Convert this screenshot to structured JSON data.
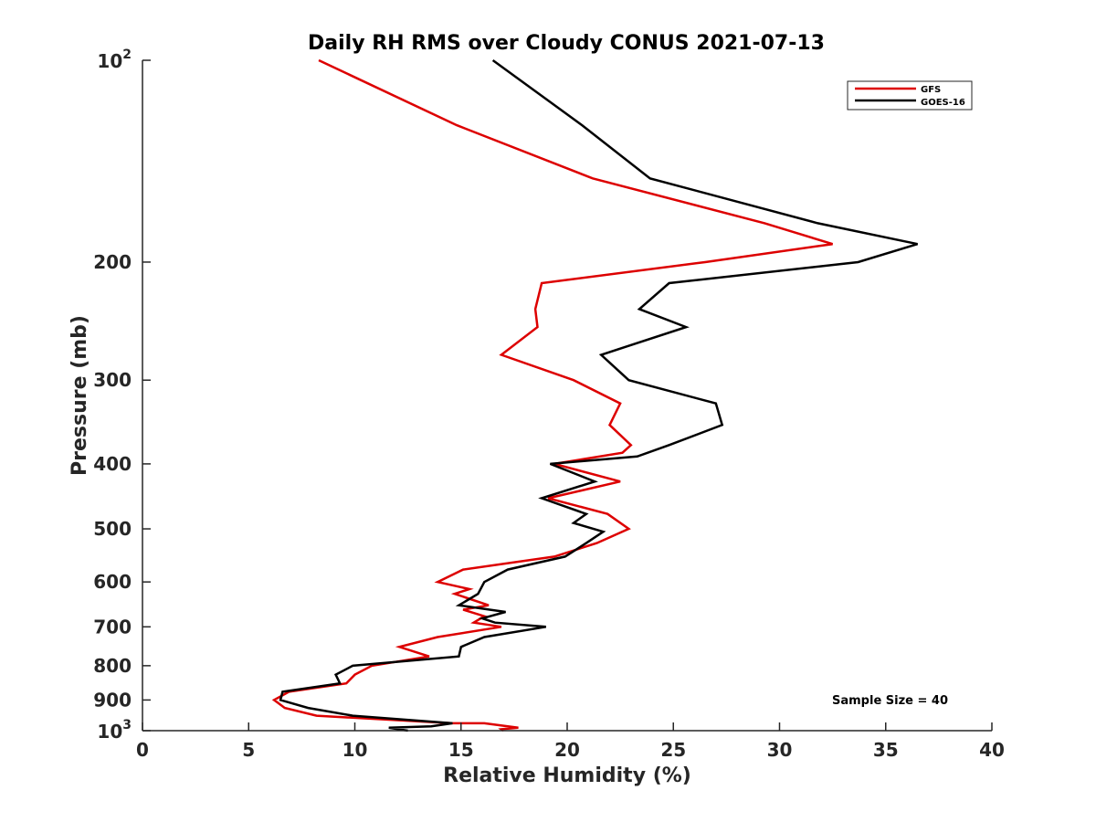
{
  "chart_data": {
    "type": "line",
    "title": "Daily RH RMS over Cloudy CONUS 2021-07-13",
    "xlabel": "Relative Humidity (%)",
    "ylabel": "Pressure (mb)",
    "xlim": [
      0,
      40
    ],
    "ylim": [
      100,
      1000
    ],
    "y_scale": "log",
    "y_reversed": true,
    "grid": false,
    "legend_position": "top-right",
    "x_ticks": [
      "0",
      "5",
      "10",
      "15",
      "20",
      "25",
      "30",
      "35",
      "40"
    ],
    "y_ticks": [
      {
        "value": 100,
        "base": "10",
        "exp": "2"
      },
      {
        "value": 200,
        "label": "200"
      },
      {
        "value": 300,
        "label": "300"
      },
      {
        "value": 400,
        "label": "400"
      },
      {
        "value": 500,
        "label": "500"
      },
      {
        "value": 600,
        "label": "600"
      },
      {
        "value": 700,
        "label": "700"
      },
      {
        "value": 800,
        "label": "800"
      },
      {
        "value": 900,
        "label": "900"
      },
      {
        "value": 1000,
        "base": "10",
        "exp": "3"
      }
    ],
    "annotation": "Sample Size = 40",
    "series": [
      {
        "name": "GFS",
        "color": "#dd0000",
        "points": [
          [
            8.3,
            100
          ],
          [
            14.8,
            125
          ],
          [
            21.2,
            150
          ],
          [
            29.3,
            175
          ],
          [
            32.5,
            188
          ],
          [
            26.5,
            200
          ],
          [
            18.8,
            215
          ],
          [
            18.5,
            235
          ],
          [
            18.6,
            250
          ],
          [
            16.9,
            275
          ],
          [
            20.3,
            300
          ],
          [
            22.5,
            325
          ],
          [
            22.0,
            350
          ],
          [
            23.0,
            375
          ],
          [
            22.6,
            385
          ],
          [
            19.4,
            400
          ],
          [
            22.5,
            425
          ],
          [
            19.1,
            450
          ],
          [
            21.9,
            475
          ],
          [
            22.9,
            500
          ],
          [
            21.4,
            525
          ],
          [
            19.4,
            550
          ],
          [
            15.1,
            575
          ],
          [
            13.9,
            600
          ],
          [
            15.4,
            615
          ],
          [
            14.7,
            625
          ],
          [
            16.3,
            650
          ],
          [
            15.1,
            660
          ],
          [
            16.1,
            675
          ],
          [
            15.6,
            690
          ],
          [
            16.9,
            700
          ],
          [
            13.9,
            725
          ],
          [
            12.1,
            750
          ],
          [
            13.5,
            775
          ],
          [
            10.8,
            800
          ],
          [
            10.0,
            825
          ],
          [
            9.6,
            850
          ],
          [
            6.9,
            875
          ],
          [
            6.2,
            900
          ],
          [
            6.7,
            925
          ],
          [
            8.2,
            950
          ],
          [
            14.6,
            975
          ],
          [
            16.1,
            975
          ],
          [
            17.7,
            990
          ],
          [
            16.9,
            995
          ],
          [
            17.0,
            1000
          ]
        ]
      },
      {
        "name": "GOES-16",
        "color": "#000000",
        "points": [
          [
            16.5,
            100
          ],
          [
            20.7,
            125
          ],
          [
            23.9,
            150
          ],
          [
            31.8,
            175
          ],
          [
            36.5,
            188
          ],
          [
            33.7,
            200
          ],
          [
            24.8,
            215
          ],
          [
            23.4,
            235
          ],
          [
            25.6,
            250
          ],
          [
            21.6,
            275
          ],
          [
            22.9,
            300
          ],
          [
            27.0,
            325
          ],
          [
            27.3,
            350
          ],
          [
            24.8,
            375
          ],
          [
            23.3,
            390
          ],
          [
            19.2,
            400
          ],
          [
            21.3,
            425
          ],
          [
            18.8,
            450
          ],
          [
            20.9,
            475
          ],
          [
            20.3,
            490
          ],
          [
            21.7,
            505
          ],
          [
            20.9,
            525
          ],
          [
            19.9,
            550
          ],
          [
            17.2,
            575
          ],
          [
            16.1,
            600
          ],
          [
            15.8,
            625
          ],
          [
            14.9,
            650
          ],
          [
            17.1,
            665
          ],
          [
            16.0,
            680
          ],
          [
            16.6,
            690
          ],
          [
            19.0,
            700
          ],
          [
            16.1,
            725
          ],
          [
            15.0,
            750
          ],
          [
            14.9,
            775
          ],
          [
            9.9,
            800
          ],
          [
            9.1,
            825
          ],
          [
            9.3,
            850
          ],
          [
            6.6,
            875
          ],
          [
            6.5,
            900
          ],
          [
            7.8,
            925
          ],
          [
            9.9,
            950
          ],
          [
            14.6,
            975
          ],
          [
            13.6,
            985
          ],
          [
            11.6,
            990
          ],
          [
            12.5,
            1000
          ]
        ]
      }
    ]
  }
}
